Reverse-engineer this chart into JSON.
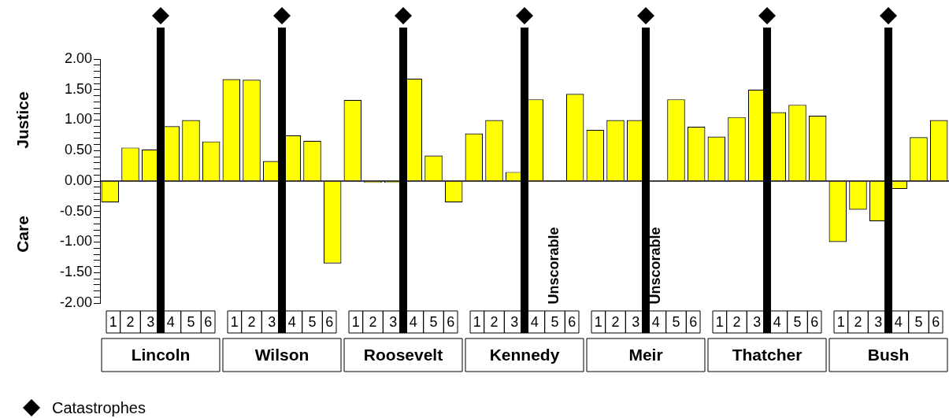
{
  "chart_data": {
    "type": "bar",
    "ylabel": "Justice",
    "color": "#ffff00",
    "categories": [
      "1",
      "2",
      "3",
      "4",
      "5",
      "6",
      "1",
      "2",
      "3",
      "4",
      "5",
      "6",
      "1",
      "2",
      "3",
      "4",
      "5",
      "6",
      "1",
      "2",
      "3",
      "4",
      "5",
      "6",
      "1",
      "2",
      "3",
      "4",
      "5",
      "6",
      "1",
      "2",
      "3",
      "4",
      "5",
      "6",
      "1",
      "2",
      "3",
      "4",
      "5",
      "6"
    ],
    "values": [
      -0.35,
      0.55,
      0.52,
      0.9,
      1.0,
      0.65,
      1.67,
      1.66,
      0.33,
      0.75,
      0.66,
      -1.35,
      1.33,
      -0.03,
      -0.03,
      1.68,
      0.42,
      -0.35,
      0.78,
      1.0,
      0.15,
      1.34,
      null,
      1.43,
      0.84,
      1.0,
      1.0,
      null,
      1.34,
      0.89,
      0.73,
      1.05,
      1.5,
      1.13,
      1.25,
      1.07,
      -1.0,
      -0.47,
      -0.66,
      -0.13,
      0.72,
      1.0
    ],
    "ylim": [
      -2,
      2
    ],
    "yticks": [
      {
        "value": -2,
        "label": "-2.00"
      },
      {
        "value": -1.9,
        "label": null
      },
      {
        "value": -1.8,
        "label": null
      },
      {
        "value": -1.7,
        "label": null
      },
      {
        "value": -1.6,
        "label": null
      },
      {
        "value": -1.5,
        "label": "-1.50"
      },
      {
        "value": -1.4,
        "label": null
      },
      {
        "value": -1.3,
        "label": null
      },
      {
        "value": -1.2,
        "label": null
      },
      {
        "value": -1.1,
        "label": null
      },
      {
        "value": -1,
        "label": "-1.00"
      },
      {
        "value": -0.9,
        "label": null
      },
      {
        "value": -0.8,
        "label": null
      },
      {
        "value": -0.7,
        "label": null
      },
      {
        "value": -0.6,
        "label": null
      },
      {
        "value": -0.5,
        "label": "-0.50"
      },
      {
        "value": -0.4,
        "label": null
      },
      {
        "value": -0.3,
        "label": null
      },
      {
        "value": -0.2,
        "label": null
      },
      {
        "value": -0.1,
        "label": null
      },
      {
        "value": 0,
        "label": "0.00"
      },
      {
        "value": 0.1,
        "label": null
      },
      {
        "value": 0.2,
        "label": null
      },
      {
        "value": 0.3,
        "label": null
      },
      {
        "value": 0.4,
        "label": null
      },
      {
        "value": 0.5,
        "label": "0.50"
      },
      {
        "value": 0.6,
        "label": null
      },
      {
        "value": 0.7,
        "label": null
      },
      {
        "value": 0.8,
        "label": null
      },
      {
        "value": 0.9,
        "label": null
      },
      {
        "value": 1,
        "label": "1.00"
      },
      {
        "value": 1.1,
        "label": null
      },
      {
        "value": 1.2,
        "label": null
      },
      {
        "value": 1.3,
        "label": null
      },
      {
        "value": 1.4,
        "label": null
      },
      {
        "value": 1.5,
        "label": "1.50"
      },
      {
        "value": 1.6,
        "label": null
      },
      {
        "value": 1.7,
        "label": null
      },
      {
        "value": 1.8,
        "label": null
      },
      {
        "value": 1.9,
        "label": null
      },
      {
        "value": 2,
        "label": "2.00"
      }
    ],
    "annotations": [
      "Catastrophes",
      "Care",
      "Unscorable",
      "Unscorable",
      "Lincoln",
      "Wilson",
      "Roosevelt",
      "Kennedy",
      "Meir",
      "Thatcher",
      "Bush"
    ]
  }
}
